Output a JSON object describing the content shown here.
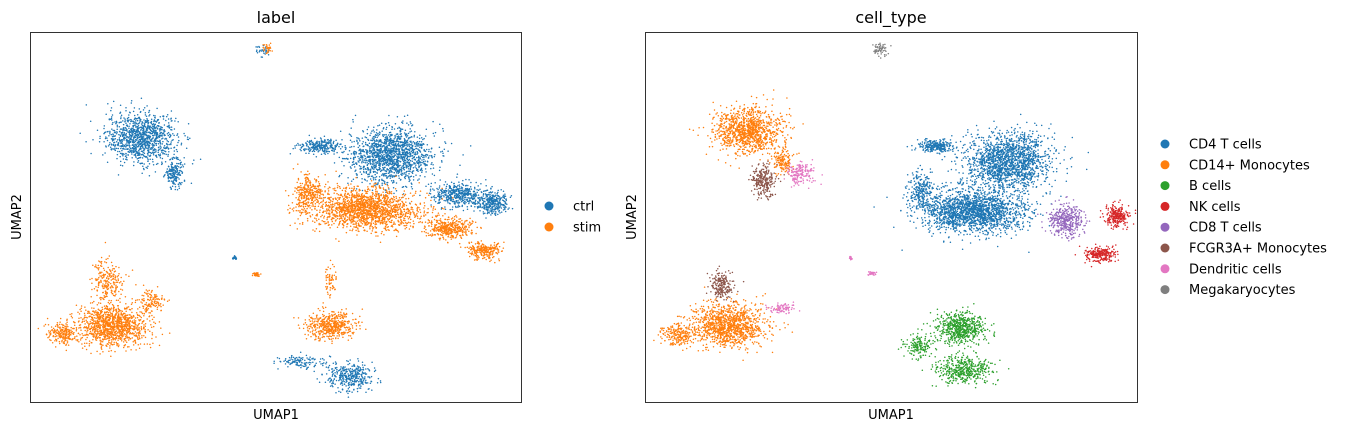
{
  "chart_data": [
    {
      "type": "scatter",
      "title": "label",
      "xlabel": "UMAP1",
      "ylabel": "UMAP2",
      "legend_position": "right",
      "series": [
        {
          "name": "ctrl",
          "color": "#1f77b4",
          "clusters": [
            {
              "center": [
                -9.2,
                8.0
              ],
              "spread": [
                1.9,
                1.9
              ],
              "n": 1100
            },
            {
              "center": [
                -7.2,
                5.0
              ],
              "spread": [
                0.5,
                1.1
              ],
              "n": 180
            },
            {
              "center": [
                1.5,
                7.3
              ],
              "spread": [
                1.1,
                0.5
              ],
              "n": 250
            },
            {
              "center": [
                5.7,
                6.5
              ],
              "spread": [
                2.3,
                2.1
              ],
              "n": 1500
            },
            {
              "center": [
                9.8,
                3.2
              ],
              "spread": [
                1.5,
                0.9
              ],
              "n": 450
            },
            {
              "center": [
                11.8,
                2.5
              ],
              "spread": [
                0.8,
                0.9
              ],
              "n": 300
            },
            {
              "center": [
                3.2,
                -12.0
              ],
              "spread": [
                1.3,
                1.0
              ],
              "n": 350
            },
            {
              "center": [
                0.3,
                -10.8
              ],
              "spread": [
                1.3,
                0.5
              ],
              "n": 120
            },
            {
              "center": [
                -1.9,
                15.3
              ],
              "spread": [
                0.4,
                0.5
              ],
              "n": 30
            },
            {
              "center": [
                -3.6,
                -2.1
              ],
              "spread": [
                0.1,
                0.15
              ],
              "n": 20
            },
            {
              "center": [
                7.5,
                7.4
              ],
              "spread": [
                0.12,
                0.08
              ],
              "n": 10
            }
          ]
        },
        {
          "name": "stim",
          "color": "#ff7f0e",
          "clusters": [
            {
              "center": [
                4.2,
                2.0
              ],
              "spread": [
                2.9,
                1.5
              ],
              "n": 1700
            },
            {
              "center": [
                0.8,
                3.3
              ],
              "spread": [
                0.8,
                1.5
              ],
              "n": 300
            },
            {
              "center": [
                9.2,
                0.4
              ],
              "spread": [
                1.2,
                0.8
              ],
              "n": 400
            },
            {
              "center": [
                11.3,
                -1.5
              ],
              "spread": [
                0.9,
                0.6
              ],
              "n": 250
            },
            {
              "center": [
                -10.9,
                -7.8
              ],
              "spread": [
                2.0,
                1.6
              ],
              "n": 1200
            },
            {
              "center": [
                -13.9,
                -8.5
              ],
              "spread": [
                0.8,
                0.8
              ],
              "n": 200
            },
            {
              "center": [
                -11.2,
                -4.0
              ],
              "spread": [
                0.8,
                1.6
              ],
              "n": 220
            },
            {
              "center": [
                -8.6,
                -5.8
              ],
              "spread": [
                0.7,
                0.9
              ],
              "n": 120
            },
            {
              "center": [
                2.1,
                -7.8
              ],
              "spread": [
                1.3,
                1.0
              ],
              "n": 500
            },
            {
              "center": [
                -1.7,
                15.5
              ],
              "spread": [
                0.3,
                0.5
              ],
              "n": 30
            },
            {
              "center": [
                -2.3,
                -3.5
              ],
              "spread": [
                0.2,
                0.15
              ],
              "n": 30
            },
            {
              "center": [
                2.1,
                -4.0
              ],
              "spread": [
                0.3,
                1.2
              ],
              "n": 60
            }
          ]
        }
      ]
    },
    {
      "type": "scatter",
      "title": "cell_type",
      "xlabel": "UMAP1",
      "ylabel": "UMAP2",
      "legend_position": "right",
      "series": [
        {
          "name": "CD4 T cells",
          "color": "#1f77b4",
          "clusters": [
            {
              "center": [
                5.8,
                6.0
              ],
              "spread": [
                2.3,
                2.2
              ],
              "n": 1700
            },
            {
              "center": [
                3.7,
                1.8
              ],
              "spread": [
                2.7,
                1.6
              ],
              "n": 1900
            },
            {
              "center": [
                1.5,
                7.3
              ],
              "spread": [
                1.1,
                0.5
              ],
              "n": 250
            },
            {
              "center": [
                7.5,
                7.4
              ],
              "spread": [
                0.12,
                0.08
              ],
              "n": 10
            },
            {
              "center": [
                0.6,
                3.5
              ],
              "spread": [
                0.7,
                1.4
              ],
              "n": 250
            }
          ]
        },
        {
          "name": "CD14+ Monocytes",
          "color": "#ff7f0e",
          "clusters": [
            {
              "center": [
                -9.7,
                8.6
              ],
              "spread": [
                1.8,
                1.7
              ],
              "n": 1100
            },
            {
              "center": [
                -10.9,
                -7.8
              ],
              "spread": [
                2.0,
                1.6
              ],
              "n": 1200
            },
            {
              "center": [
                -13.9,
                -8.5
              ],
              "spread": [
                0.8,
                0.8
              ],
              "n": 200
            },
            {
              "center": [
                -7.6,
                6.0
              ],
              "spread": [
                0.6,
                0.9
              ],
              "n": 150
            }
          ]
        },
        {
          "name": "B cells",
          "color": "#2ca02c",
          "clusters": [
            {
              "center": [
                3.0,
                -8.0
              ],
              "spread": [
                1.3,
                1.2
              ],
              "n": 600
            },
            {
              "center": [
                3.2,
                -11.5
              ],
              "spread": [
                1.4,
                1.0
              ],
              "n": 450
            },
            {
              "center": [
                0.5,
                -9.5
              ],
              "spread": [
                0.8,
                0.8
              ],
              "n": 160
            }
          ]
        },
        {
          "name": "NK cells",
          "color": "#d62728",
          "clusters": [
            {
              "center": [
                12.3,
                1.4
              ],
              "spread": [
                0.7,
                0.8
              ],
              "n": 260
            },
            {
              "center": [
                11.3,
                -1.8
              ],
              "spread": [
                0.8,
                0.6
              ],
              "n": 250
            }
          ]
        },
        {
          "name": "CD8 T cells",
          "color": "#9467bd",
          "clusters": [
            {
              "center": [
                9.3,
                1.0
              ],
              "spread": [
                0.9,
                1.2
              ],
              "n": 380
            }
          ]
        },
        {
          "name": "FCGR3A+ Monocytes",
          "color": "#8c564b",
          "clusters": [
            {
              "center": [
                -8.8,
                4.4
              ],
              "spread": [
                0.7,
                1.1
              ],
              "n": 260
            },
            {
              "center": [
                -11.3,
                -4.4
              ],
              "spread": [
                0.6,
                1.0
              ],
              "n": 200
            }
          ]
        },
        {
          "name": "Dendritic cells",
          "color": "#e377c2",
          "clusters": [
            {
              "center": [
                -6.6,
                5.0
              ],
              "spread": [
                0.7,
                0.9
              ],
              "n": 170
            },
            {
              "center": [
                -7.6,
                -6.3
              ],
              "spread": [
                0.8,
                0.4
              ],
              "n": 80
            },
            {
              "center": [
                -3.6,
                -2.1
              ],
              "spread": [
                0.1,
                0.15
              ],
              "n": 20
            },
            {
              "center": [
                -2.3,
                -3.4
              ],
              "spread": [
                0.2,
                0.15
              ],
              "n": 30
            }
          ]
        },
        {
          "name": "Megakaryocytes",
          "color": "#7f7f7f",
          "clusters": [
            {
              "center": [
                -1.8,
                15.4
              ],
              "spread": [
                0.4,
                0.6
              ],
              "n": 60
            }
          ]
        }
      ]
    }
  ]
}
